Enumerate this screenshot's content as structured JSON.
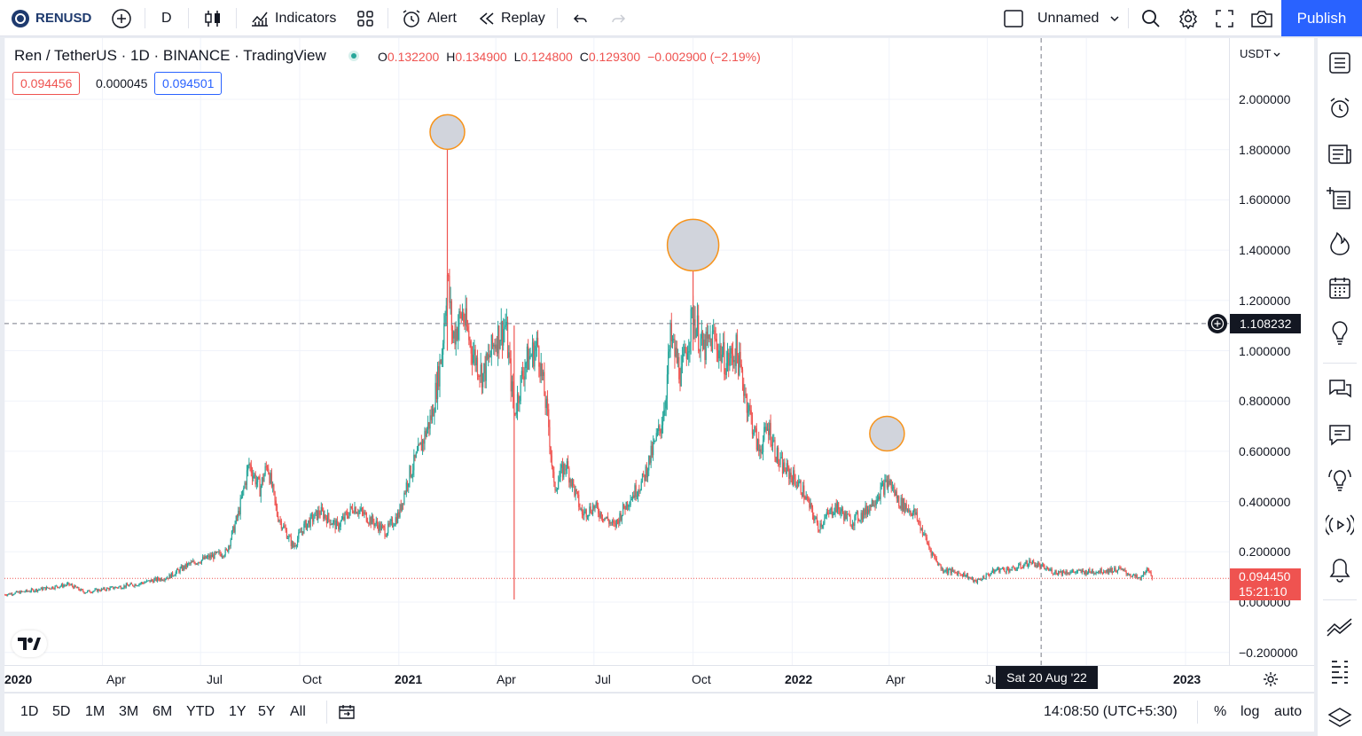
{
  "toolbar": {
    "symbol": "RENUSD",
    "interval": "D",
    "indicators_label": "Indicators",
    "alert_label": "Alert",
    "replay_label": "Replay",
    "layout_name": "Unnamed",
    "publish_label": "Publish",
    "accent_color": "#2962ff"
  },
  "legend": {
    "title": "Ren / TetherUS · 1D · BINANCE · TradingView",
    "open_key": "O",
    "open": "0.132200",
    "high_key": "H",
    "high": "0.134900",
    "low_key": "L",
    "low": "0.124800",
    "close_key": "C",
    "close": "0.129300",
    "change": "−0.002900 (−2.19%)",
    "sell_price": "0.094456",
    "spread": "0.000045",
    "buy_price": "0.094501",
    "status_color": "#26a69a"
  },
  "price_scale": {
    "currency": "USDT",
    "labels": [
      "2.000000",
      "1.800000",
      "1.600000",
      "1.400000",
      "1.200000",
      "1.000000",
      "0.800000",
      "0.600000",
      "0.400000",
      "0.200000",
      "0.000000",
      "−0.200000"
    ],
    "crosshair_value": "1.108232",
    "last_price": "0.094450",
    "countdown": "15:21:10"
  },
  "time_scale": {
    "labels": [
      {
        "text": "2020",
        "bold": true
      },
      {
        "text": "Apr",
        "bold": false
      },
      {
        "text": "Jul",
        "bold": false
      },
      {
        "text": "Oct",
        "bold": false
      },
      {
        "text": "2021",
        "bold": true
      },
      {
        "text": "Apr",
        "bold": false
      },
      {
        "text": "Jul",
        "bold": false
      },
      {
        "text": "Oct",
        "bold": false
      },
      {
        "text": "2022",
        "bold": true
      },
      {
        "text": "Apr",
        "bold": false
      },
      {
        "text": "Ju",
        "bold": false
      },
      {
        "text": "t",
        "bold": false
      },
      {
        "text": "2023",
        "bold": true
      }
    ],
    "crosshair_date": "Sat 20 Aug '22"
  },
  "bottom_bar": {
    "ranges": [
      "1D",
      "5D",
      "1M",
      "3M",
      "6M",
      "YTD",
      "1Y",
      "5Y",
      "All"
    ],
    "clock": "14:08:50 (UTC+5:30)",
    "percent_label": "%",
    "log_label": "log",
    "auto_label": "auto"
  },
  "colors": {
    "up": "#26a69a",
    "down": "#ef5350",
    "marker_fill": "#d1d4dc",
    "marker_stroke": "#f7931a",
    "last_price_bg": "#ef5350"
  },
  "chart_data": {
    "type": "candlestick",
    "symbol": "Ren / TetherUS",
    "interval": "1D",
    "exchange": "BINANCE",
    "ylim": [
      -0.2,
      2.0
    ],
    "date_range": [
      "2020-01",
      "2022-12"
    ],
    "close_path": [
      [
        "2020-01-01",
        0.03
      ],
      [
        "2020-02-01",
        0.05
      ],
      [
        "2020-03-01",
        0.07
      ],
      [
        "2020-03-15",
        0.04
      ],
      [
        "2020-04-01",
        0.05
      ],
      [
        "2020-05-01",
        0.07
      ],
      [
        "2020-06-01",
        0.1
      ],
      [
        "2020-06-20",
        0.15
      ],
      [
        "2020-07-10",
        0.18
      ],
      [
        "2020-07-25",
        0.2
      ],
      [
        "2020-08-05",
        0.35
      ],
      [
        "2020-08-15",
        0.55
      ],
      [
        "2020-08-25",
        0.45
      ],
      [
        "2020-09-01",
        0.55
      ],
      [
        "2020-09-10",
        0.35
      ],
      [
        "2020-09-25",
        0.22
      ],
      [
        "2020-10-05",
        0.3
      ],
      [
        "2020-10-20",
        0.36
      ],
      [
        "2020-11-05",
        0.3
      ],
      [
        "2020-11-20",
        0.38
      ],
      [
        "2020-12-05",
        0.33
      ],
      [
        "2020-12-20",
        0.28
      ],
      [
        "2021-01-01",
        0.35
      ],
      [
        "2021-01-10",
        0.5
      ],
      [
        "2021-01-20",
        0.6
      ],
      [
        "2021-02-01",
        0.75
      ],
      [
        "2021-02-10",
        1.0
      ],
      [
        "2021-02-15",
        1.3
      ],
      [
        "2021-02-20",
        1.05
      ],
      [
        "2021-03-01",
        1.15
      ],
      [
        "2021-03-10",
        1.0
      ],
      [
        "2021-03-20",
        0.9
      ],
      [
        "2021-04-01",
        1.05
      ],
      [
        "2021-04-10",
        1.1
      ],
      [
        "2021-04-18",
        0.75
      ],
      [
        "2021-04-28",
        0.95
      ],
      [
        "2021-05-10",
        1.02
      ],
      [
        "2021-05-20",
        0.7
      ],
      [
        "2021-05-25",
        0.45
      ],
      [
        "2021-06-05",
        0.55
      ],
      [
        "2021-06-20",
        0.35
      ],
      [
        "2021-07-01",
        0.38
      ],
      [
        "2021-07-20",
        0.3
      ],
      [
        "2021-08-01",
        0.4
      ],
      [
        "2021-08-15",
        0.48
      ],
      [
        "2021-09-01",
        0.7
      ],
      [
        "2021-09-05",
        0.8
      ],
      [
        "2021-09-10",
        1.05
      ],
      [
        "2021-09-20",
        0.9
      ],
      [
        "2021-10-01",
        1.15
      ],
      [
        "2021-10-10",
        1.0
      ],
      [
        "2021-10-20",
        1.05
      ],
      [
        "2021-11-01",
        0.95
      ],
      [
        "2021-11-10",
        1.0
      ],
      [
        "2021-11-20",
        0.8
      ],
      [
        "2021-12-01",
        0.6
      ],
      [
        "2021-12-10",
        0.7
      ],
      [
        "2021-12-20",
        0.55
      ],
      [
        "2022-01-01",
        0.5
      ],
      [
        "2022-01-10",
        0.45
      ],
      [
        "2022-01-25",
        0.3
      ],
      [
        "2022-02-10",
        0.38
      ],
      [
        "2022-02-25",
        0.32
      ],
      [
        "2022-03-10",
        0.36
      ],
      [
        "2022-03-25",
        0.45
      ],
      [
        "2022-04-01",
        0.48
      ],
      [
        "2022-04-10",
        0.4
      ],
      [
        "2022-04-25",
        0.35
      ],
      [
        "2022-05-10",
        0.2
      ],
      [
        "2022-05-20",
        0.13
      ],
      [
        "2022-06-10",
        0.11
      ],
      [
        "2022-06-20",
        0.08
      ],
      [
        "2022-07-10",
        0.13
      ],
      [
        "2022-07-25",
        0.13
      ],
      [
        "2022-08-10",
        0.16
      ],
      [
        "2022-08-20",
        0.14
      ],
      [
        "2022-09-01",
        0.12
      ],
      [
        "2022-10-01",
        0.12
      ],
      [
        "2022-11-01",
        0.13
      ],
      [
        "2022-11-20",
        0.09
      ],
      [
        "2022-11-25",
        0.13
      ],
      [
        "2022-12-01",
        0.1
      ]
    ],
    "spikes": [
      {
        "date": "2021-02-15",
        "high": 1.83
      },
      {
        "date": "2021-04-18",
        "low": 0.01
      },
      {
        "date": "2021-10-01",
        "high": 1.32
      }
    ],
    "markers": [
      {
        "date": "2021-02-15",
        "price": 1.87,
        "size": "small"
      },
      {
        "date": "2021-10-01",
        "price": 1.42,
        "size": "large"
      },
      {
        "date": "2022-03-30",
        "price": 0.67,
        "size": "small"
      }
    ]
  }
}
